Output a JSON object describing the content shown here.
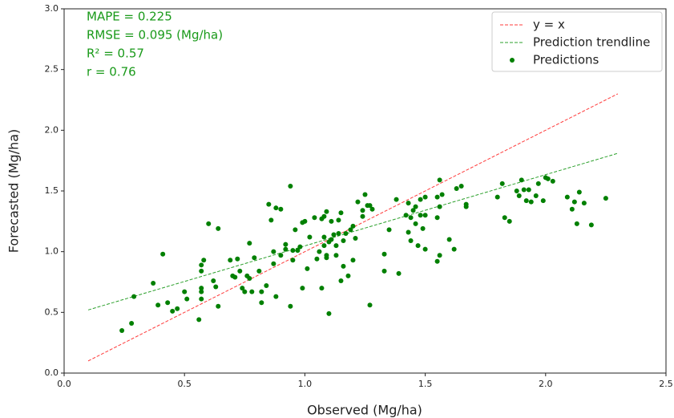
{
  "chart_data": {
    "type": "scatter",
    "xlabel": "Observed (Mg/ha)",
    "ylabel": "Forecasted (Mg/ha)",
    "annotations": [
      "MAPE = 0.225",
      "RMSE = 0.095 (Mg/ha)",
      "R² = 0.57",
      "r = 0.76"
    ],
    "annotation_color": "#1a9a1a",
    "xlim": [
      0,
      2.5
    ],
    "ylim": [
      0,
      3.0
    ],
    "xticks": [
      {
        "value": 0,
        "label": "0.0"
      },
      0.5,
      {
        "value": 1,
        "label": "1.0"
      },
      1.5,
      {
        "value": 2,
        "label": "2.0"
      },
      2.5
    ],
    "yticks": [
      {
        "value": 0,
        "label": "0.0"
      },
      0.5,
      {
        "value": 1,
        "label": "1.0"
      },
      1.5,
      {
        "value": 2,
        "label": "2.0"
      },
      2.5,
      {
        "value": 3,
        "label": "3.0"
      }
    ],
    "grid": false,
    "legend": "upper right",
    "series": [
      {
        "name": "y = x",
        "color": "#ff3b3b",
        "mode": "line",
        "x": [
          0.1,
          2.3
        ],
        "values": [
          0.1,
          2.3
        ]
      },
      {
        "name": "Prediction trendline",
        "color": "#2ca02c",
        "mode": "line",
        "x": [
          0.1,
          2.3
        ],
        "values": [
          0.52,
          1.81
        ]
      },
      {
        "name": "Predictions",
        "color": "#008000",
        "mode": "markers",
        "x": [
          0.24,
          0.28,
          0.29,
          0.37,
          0.39,
          0.41,
          0.43,
          0.45,
          0.47,
          0.5,
          0.51,
          0.56,
          0.57,
          0.57,
          0.57,
          0.57,
          0.57,
          0.58,
          0.6,
          0.62,
          0.63,
          0.64,
          0.64,
          0.69,
          0.7,
          0.71,
          0.72,
          0.73,
          0.74,
          0.75,
          0.76,
          0.77,
          0.77,
          0.78,
          0.79,
          0.81,
          0.82,
          0.82,
          0.84,
          0.85,
          0.86,
          0.87,
          0.87,
          0.88,
          0.88,
          0.9,
          0.9,
          0.92,
          0.92,
          0.94,
          0.94,
          0.95,
          0.95,
          0.96,
          0.97,
          0.98,
          0.99,
          0.99,
          1.0,
          1.01,
          1.02,
          1.04,
          1.05,
          1.06,
          1.07,
          1.07,
          1.08,
          1.08,
          1.08,
          1.09,
          1.09,
          1.09,
          1.1,
          1.1,
          1.11,
          1.11,
          1.12,
          1.13,
          1.13,
          1.14,
          1.14,
          1.15,
          1.15,
          1.16,
          1.16,
          1.17,
          1.18,
          1.19,
          1.2,
          1.2,
          1.21,
          1.22,
          1.24,
          1.24,
          1.25,
          1.26,
          1.27,
          1.27,
          1.28,
          1.33,
          1.33,
          1.35,
          1.38,
          1.39,
          1.42,
          1.43,
          1.43,
          1.44,
          1.44,
          1.45,
          1.46,
          1.46,
          1.47,
          1.48,
          1.48,
          1.49,
          1.5,
          1.5,
          1.5,
          1.55,
          1.55,
          1.55,
          1.56,
          1.56,
          1.57,
          1.56,
          1.6,
          1.62,
          1.63,
          1.65,
          1.67,
          1.67,
          1.8,
          1.82,
          1.83,
          1.85,
          1.88,
          1.89,
          1.9,
          1.91,
          1.92,
          1.93,
          1.94,
          1.96,
          1.97,
          1.99,
          2.0,
          2.01,
          2.03,
          2.09,
          2.11,
          2.12,
          2.13,
          2.14,
          2.16,
          2.19,
          2.25
        ],
        "values": [
          0.35,
          0.41,
          0.63,
          0.74,
          0.56,
          0.98,
          0.58,
          0.51,
          0.53,
          0.67,
          0.61,
          0.44,
          0.61,
          0.67,
          0.7,
          0.84,
          0.89,
          0.93,
          1.23,
          0.76,
          0.71,
          0.55,
          1.19,
          0.93,
          0.8,
          0.79,
          0.94,
          0.84,
          0.7,
          0.67,
          0.8,
          0.78,
          1.07,
          0.67,
          0.95,
          0.84,
          0.58,
          0.67,
          0.72,
          1.39,
          1.26,
          0.9,
          1.0,
          0.63,
          1.36,
          1.35,
          0.97,
          1.02,
          1.06,
          0.55,
          1.54,
          0.93,
          1.01,
          1.18,
          1.01,
          1.04,
          0.7,
          1.24,
          1.25,
          0.86,
          1.12,
          1.28,
          0.94,
          1.0,
          0.7,
          1.27,
          1.05,
          1.12,
          1.29,
          0.97,
          1.33,
          0.95,
          0.49,
          1.08,
          1.1,
          1.25,
          1.14,
          0.97,
          1.05,
          1.15,
          1.26,
          0.76,
          1.32,
          0.88,
          1.09,
          1.15,
          0.8,
          1.18,
          1.21,
          0.93,
          1.11,
          1.41,
          1.29,
          1.34,
          1.47,
          1.38,
          0.56,
          1.38,
          1.35,
          0.84,
          0.98,
          1.18,
          1.43,
          0.82,
          1.3,
          1.16,
          1.4,
          1.09,
          1.28,
          1.34,
          1.23,
          1.37,
          1.05,
          1.43,
          1.3,
          1.19,
          1.02,
          1.45,
          1.3,
          0.92,
          1.28,
          1.45,
          0.97,
          1.37,
          1.47,
          1.59,
          1.1,
          1.02,
          1.52,
          1.54,
          1.37,
          1.39,
          1.45,
          1.56,
          1.28,
          1.25,
          1.5,
          1.46,
          1.59,
          1.51,
          1.42,
          1.51,
          1.41,
          1.46,
          1.56,
          1.42,
          1.61,
          1.6,
          1.58,
          1.45,
          1.35,
          1.41,
          1.23,
          1.49,
          1.4,
          1.22,
          1.44
        ]
      }
    ]
  }
}
